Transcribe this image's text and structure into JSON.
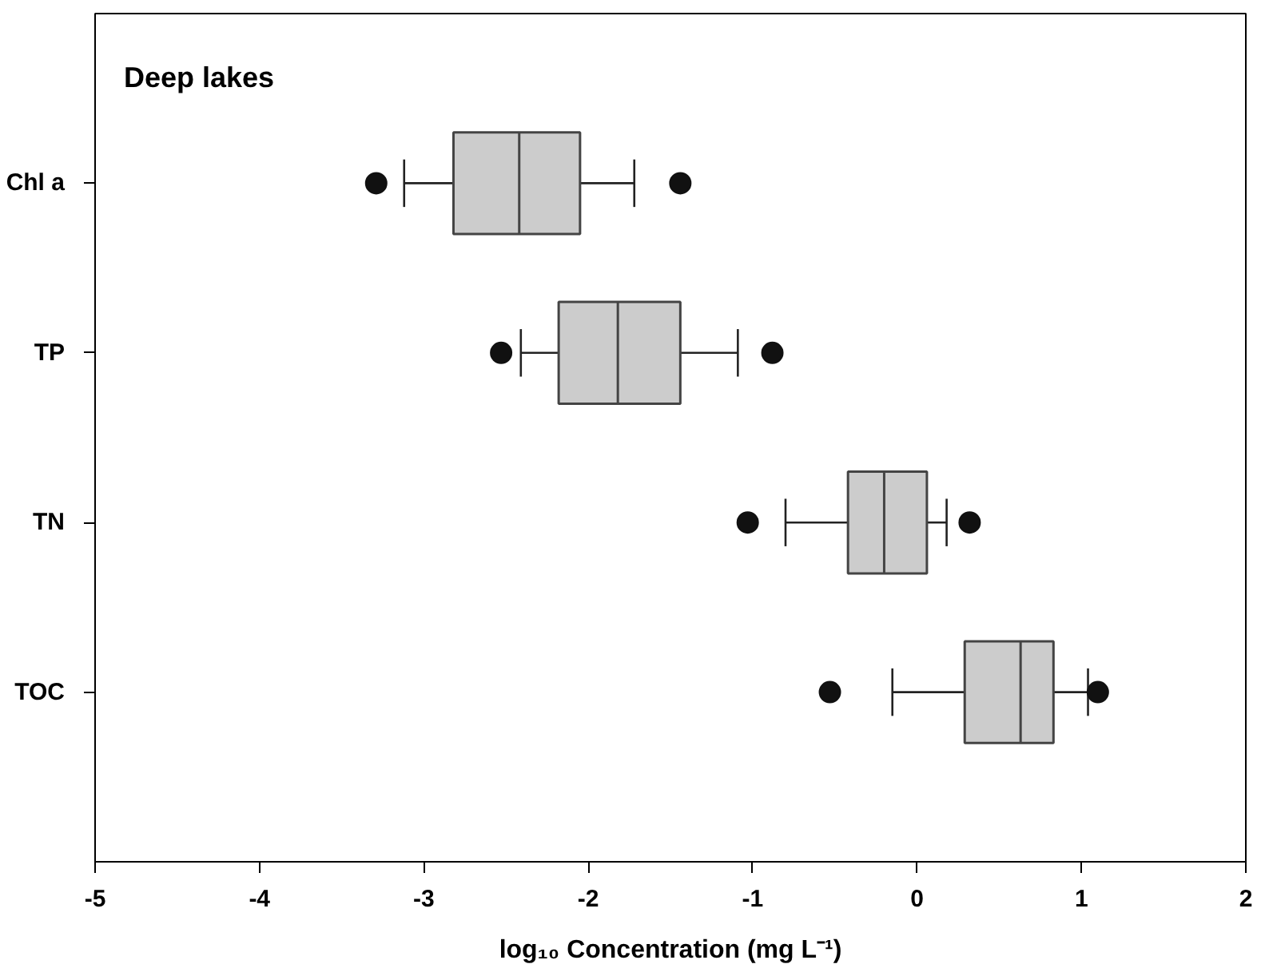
{
  "chart_data": {
    "type": "box",
    "orientation": "horizontal",
    "title": "Deep lakes",
    "xlabel": "log₁₀ Concentration (mg L⁻¹)",
    "categories": [
      "Chl a",
      "TP",
      "TN",
      "TOC"
    ],
    "color": "#cccccc",
    "boxes": [
      {
        "low": -3.12,
        "q1": -2.82,
        "median": -2.42,
        "q3": -2.05,
        "high": -1.72,
        "outliers": [
          -3.29,
          -1.44
        ]
      },
      {
        "low": -2.41,
        "q1": -2.18,
        "median": -1.82,
        "q3": -1.44,
        "high": -1.09,
        "outliers": [
          -2.53,
          -0.88
        ]
      },
      {
        "low": -0.8,
        "q1": -0.42,
        "median": -0.2,
        "q3": 0.06,
        "high": 0.18,
        "outliers": [
          -1.03,
          0.32
        ]
      },
      {
        "low": -0.15,
        "q1": 0.29,
        "median": 0.63,
        "q3": 0.83,
        "high": 1.04,
        "outliers": [
          -0.53,
          1.1
        ]
      }
    ],
    "xlim": [
      -5,
      2
    ],
    "xticks": [
      -5,
      -4,
      -3,
      -2,
      -1,
      0,
      1,
      2
    ],
    "grid": false
  }
}
